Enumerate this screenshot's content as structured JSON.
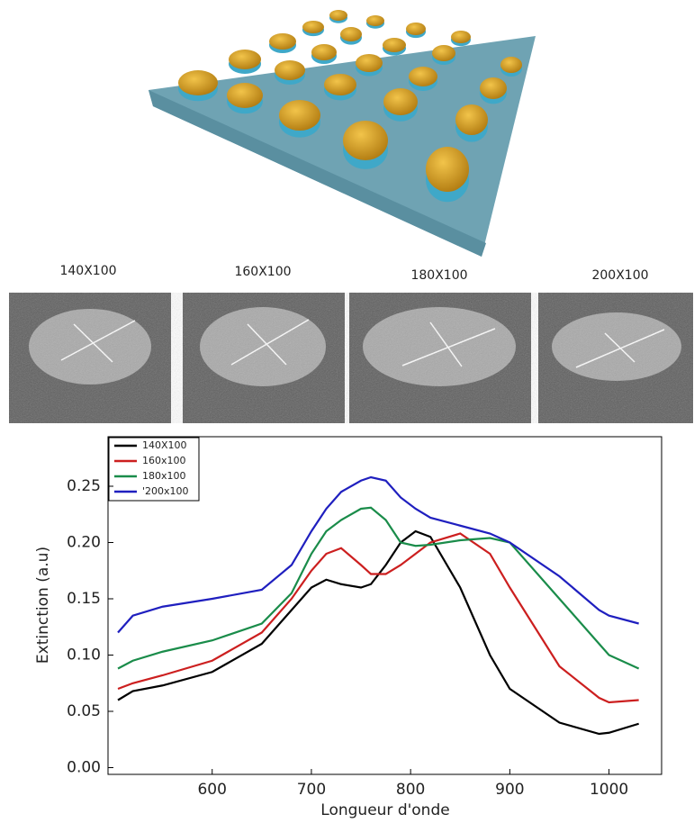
{
  "panels": {
    "labels": [
      "140X100",
      "160X100",
      "180X100",
      "200X100"
    ]
  },
  "chart_data": {
    "type": "line",
    "xlabel": "Longueur d'onde",
    "ylabel": "Extinction (a.u)",
    "x": [
      505,
      520,
      550,
      600,
      650,
      680,
      700,
      715,
      730,
      750,
      760,
      775,
      790,
      805,
      820,
      850,
      880,
      900,
      950,
      990,
      1000,
      1030
    ],
    "series": [
      {
        "name": "140X100",
        "color": "#000000",
        "values": [
          0.06,
          0.068,
          0.073,
          0.085,
          0.11,
          0.14,
          0.16,
          0.167,
          0.163,
          0.16,
          0.163,
          0.18,
          0.2,
          0.21,
          0.205,
          0.16,
          0.1,
          0.07,
          0.04,
          0.03,
          0.031,
          0.039
        ]
      },
      {
        "name": "160x100",
        "color": "#cc1f1f",
        "values": [
          0.07,
          0.075,
          0.082,
          0.095,
          0.12,
          0.15,
          0.175,
          0.19,
          0.195,
          0.18,
          0.172,
          0.172,
          0.18,
          0.19,
          0.2,
          0.208,
          0.19,
          0.16,
          0.09,
          0.062,
          0.058,
          0.06
        ]
      },
      {
        "name": "180x100",
        "color": "#1a8c4a",
        "values": [
          0.088,
          0.095,
          0.103,
          0.113,
          0.128,
          0.155,
          0.19,
          0.21,
          0.22,
          0.23,
          0.231,
          0.22,
          0.2,
          0.197,
          0.198,
          0.202,
          0.204,
          0.2,
          0.15,
          0.11,
          0.1,
          0.088
        ]
      },
      {
        "name": "'200x100",
        "color": "#1f1fbf",
        "values": [
          0.12,
          0.135,
          0.143,
          0.15,
          0.158,
          0.18,
          0.21,
          0.23,
          0.245,
          0.255,
          0.258,
          0.255,
          0.24,
          0.23,
          0.222,
          0.215,
          0.208,
          0.2,
          0.17,
          0.14,
          0.135,
          0.128
        ]
      }
    ],
    "xlim": [
      495,
      1053
    ],
    "ylim": [
      -0.006,
      0.294
    ],
    "xticks": [
      600,
      700,
      800,
      900,
      1000
    ],
    "yticks": [
      {
        "value": 0,
        "label": "0.00"
      },
      0.05,
      {
        "value": 0.1,
        "label": "0.10"
      },
      0.15,
      {
        "value": 0.2,
        "label": "0.20"
      },
      0.25
    ],
    "legend": "upper left",
    "grid": false
  }
}
